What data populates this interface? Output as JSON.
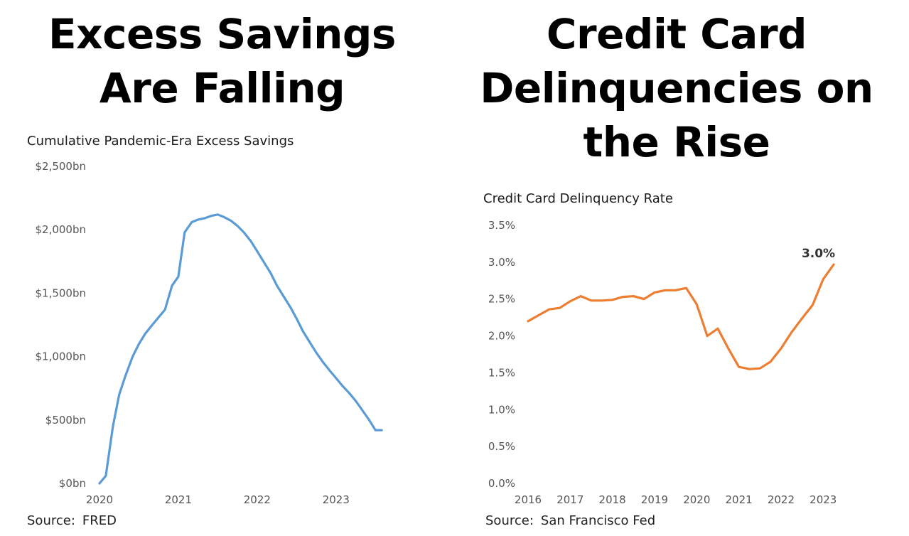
{
  "headlines": {
    "left": [
      "Excess Savings",
      "Are Falling"
    ],
    "right": [
      "Credit Card",
      "Delinquencies on",
      "the Rise"
    ]
  },
  "chart_data": [
    {
      "type": "line",
      "title": "Cumulative Pandemic-Era Excess Savings",
      "source_label": "Source:",
      "source": "FRED",
      "xlabel": "",
      "ylabel": "",
      "xlim": [
        2020,
        2023.75
      ],
      "ylim": [
        0,
        2500
      ],
      "x_ticks": [
        2020,
        2021,
        2022,
        2023
      ],
      "y_ticks": [
        {
          "value": 0,
          "label": "$0bn"
        },
        {
          "value": 500,
          "label": "$500bn"
        },
        {
          "value": 1000,
          "label": "$1,000bn"
        },
        {
          "value": 1500,
          "label": "$1,500bn"
        },
        {
          "value": 2000,
          "label": "$2,000bn"
        },
        {
          "value": 2500,
          "label": "$2,500bn"
        }
      ],
      "color": "#5b9bd5",
      "grid": false,
      "series": [
        {
          "name": "Excess Savings",
          "x": [
            2020.0,
            2020.08,
            2020.17,
            2020.25,
            2020.33,
            2020.42,
            2020.5,
            2020.58,
            2020.67,
            2020.75,
            2020.83,
            2020.92,
            2021.0,
            2021.08,
            2021.17,
            2021.25,
            2021.33,
            2021.42,
            2021.5,
            2021.58,
            2021.67,
            2021.75,
            2021.83,
            2021.92,
            2022.0,
            2022.08,
            2022.17,
            2022.25,
            2022.33,
            2022.42,
            2022.5,
            2022.58,
            2022.67,
            2022.75,
            2022.83,
            2022.92,
            2023.0,
            2023.08,
            2023.17,
            2023.25,
            2023.33,
            2023.42,
            2023.5,
            2023.58
          ],
          "values": [
            0,
            60,
            450,
            700,
            850,
            1000,
            1100,
            1180,
            1250,
            1310,
            1370,
            1560,
            1630,
            1980,
            2060,
            2080,
            2090,
            2110,
            2120,
            2100,
            2070,
            2030,
            1980,
            1910,
            1830,
            1750,
            1660,
            1560,
            1480,
            1390,
            1300,
            1200,
            1110,
            1030,
            960,
            890,
            830,
            770,
            710,
            650,
            580,
            500,
            420,
            420
          ]
        }
      ]
    },
    {
      "type": "line",
      "title": "Credit Card Delinquency Rate",
      "source_label": "Source:",
      "source": "San Francisco Fed",
      "xlabel": "",
      "ylabel": "",
      "xlim": [
        2016,
        2023.4
      ],
      "ylim": [
        0,
        3.5
      ],
      "x_ticks": [
        2016,
        2017,
        2018,
        2019,
        2020,
        2021,
        2022,
        2023
      ],
      "y_ticks": [
        {
          "value": 0,
          "label": "0.0%"
        },
        {
          "value": 0.5,
          "label": "0.5%"
        },
        {
          "value": 1.0,
          "label": "1.0%"
        },
        {
          "value": 1.5,
          "label": "1.5%"
        },
        {
          "value": 2.0,
          "label": "2.0%"
        },
        {
          "value": 2.5,
          "label": "2.5%"
        },
        {
          "value": 3.0,
          "label": "3.0%"
        },
        {
          "value": 3.5,
          "label": "3.5%"
        }
      ],
      "color": "#ed7d31",
      "grid": false,
      "annotation": {
        "label": "3.0%",
        "x": 2023.25,
        "y": 2.97
      },
      "series": [
        {
          "name": "Delinquency Rate",
          "x": [
            2016.0,
            2016.25,
            2016.5,
            2016.75,
            2017.0,
            2017.25,
            2017.5,
            2017.75,
            2018.0,
            2018.25,
            2018.5,
            2018.75,
            2019.0,
            2019.25,
            2019.5,
            2019.75,
            2020.0,
            2020.25,
            2020.5,
            2020.75,
            2021.0,
            2021.25,
            2021.5,
            2021.75,
            2022.0,
            2022.25,
            2022.5,
            2022.75,
            2023.0,
            2023.25
          ],
          "values": [
            2.2,
            2.28,
            2.36,
            2.38,
            2.47,
            2.54,
            2.48,
            2.48,
            2.49,
            2.53,
            2.54,
            2.5,
            2.59,
            2.62,
            2.62,
            2.65,
            2.43,
            2.0,
            2.1,
            1.83,
            1.58,
            1.55,
            1.56,
            1.65,
            1.83,
            2.05,
            2.24,
            2.42,
            2.77,
            2.97
          ]
        }
      ]
    }
  ]
}
